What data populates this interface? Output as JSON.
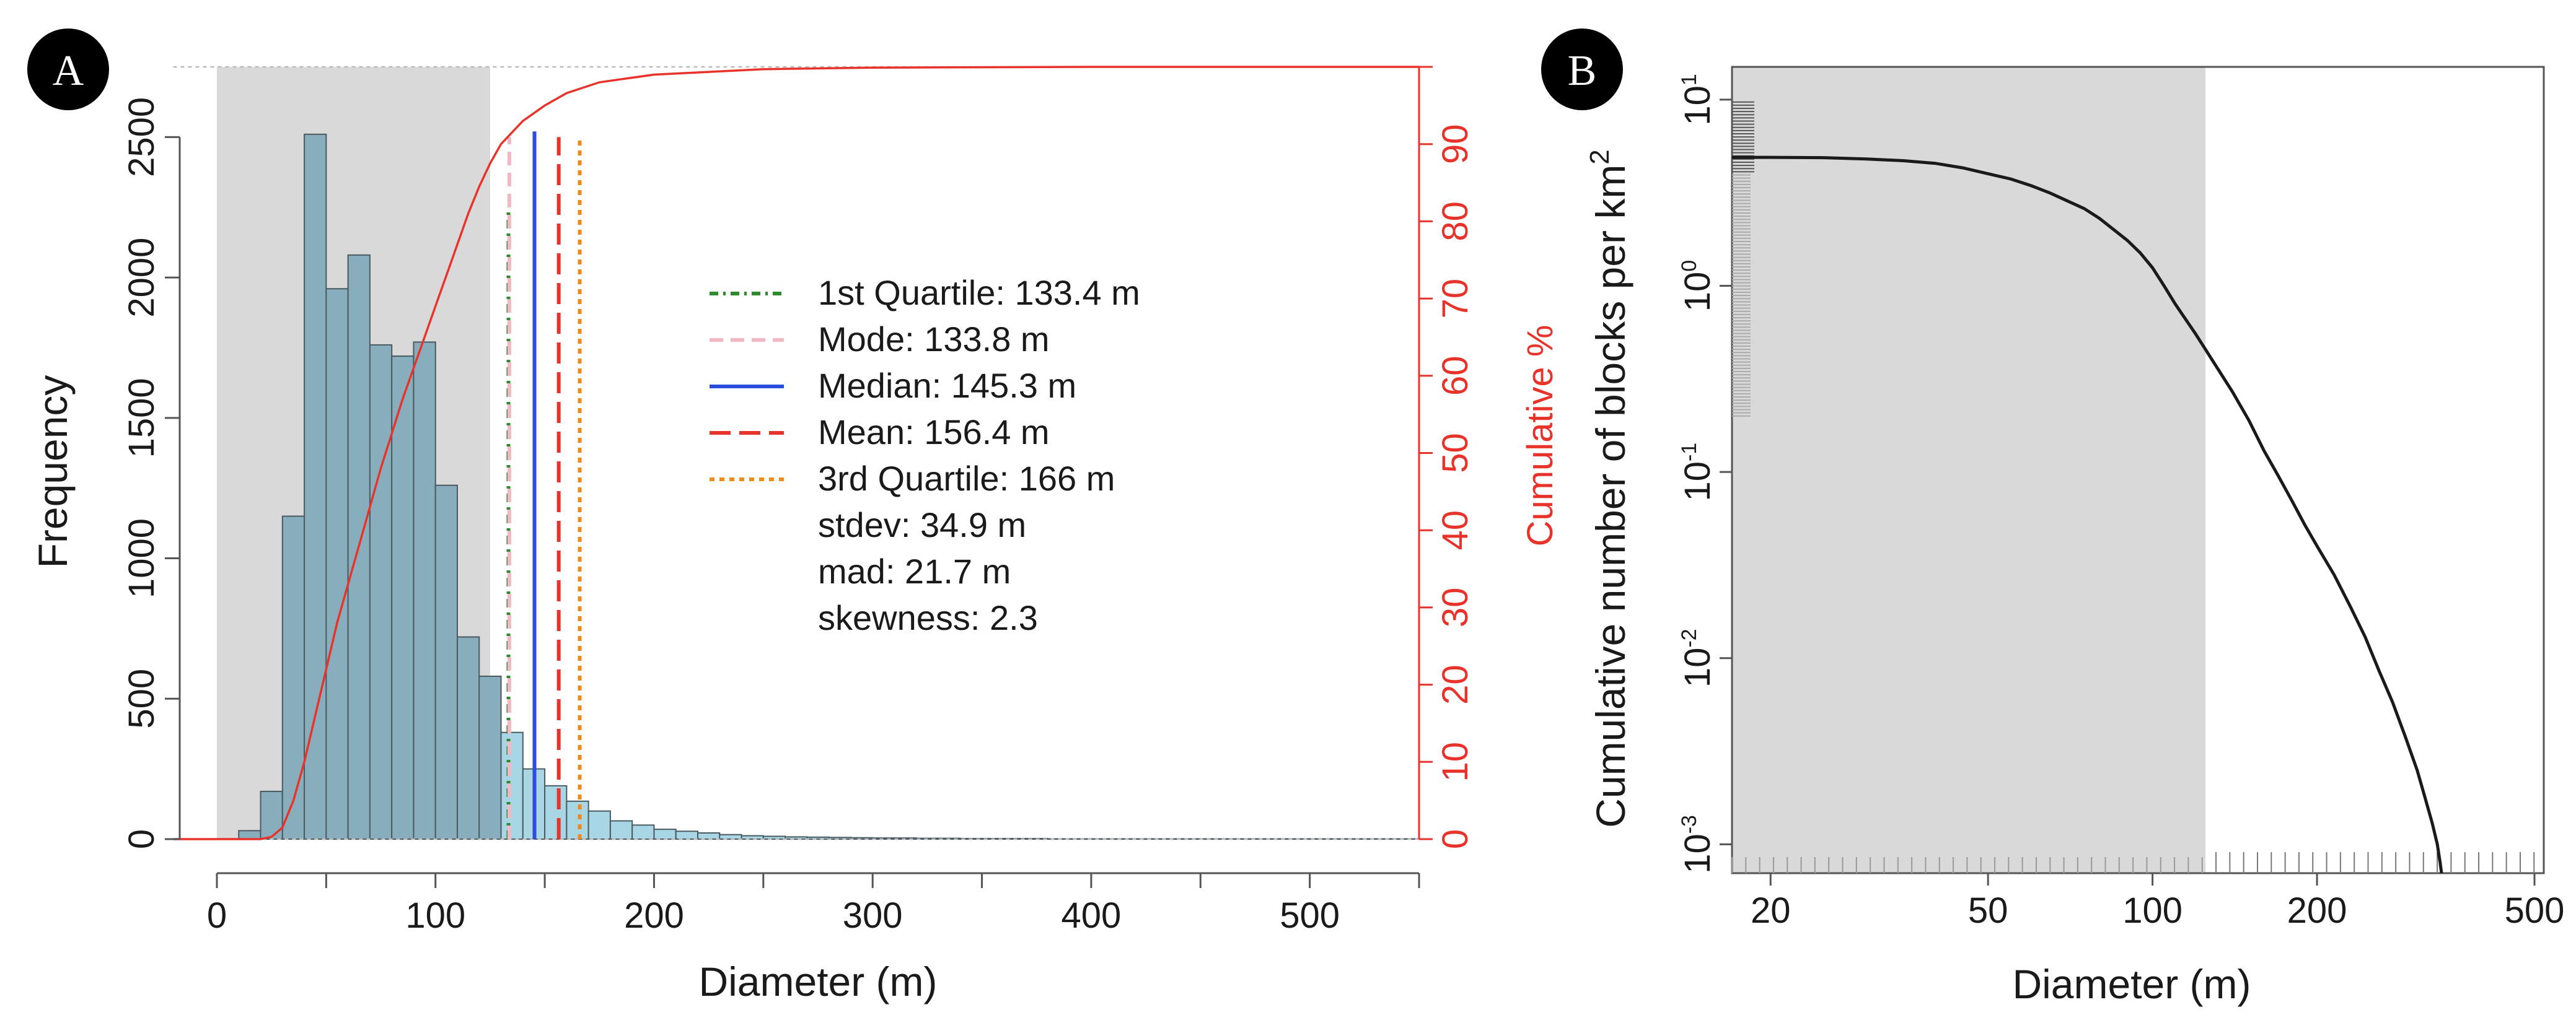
{
  "panels": {
    "A": {
      "badge": "A"
    },
    "B": {
      "badge": "B"
    }
  },
  "chart_data": [
    {
      "type": "bar",
      "panel": "A",
      "xlabel": "Diameter (m)",
      "ylabel": "Frequency",
      "y2label": "Cumulative %",
      "xlim": [
        0,
        550
      ],
      "ylim": [
        0,
        2750
      ],
      "y2lim": [
        0,
        100
      ],
      "x_ticks": [
        0,
        100,
        200,
        300,
        400,
        500
      ],
      "y_ticks": [
        0,
        500,
        1000,
        1500,
        2000,
        2500
      ],
      "y2_ticks": [
        0,
        10,
        20,
        30,
        40,
        50,
        60,
        70,
        80,
        90
      ],
      "shaded_region": [
        0,
        125
      ],
      "bin_width": 10,
      "bins": [
        [
          0,
          0
        ],
        [
          10,
          30
        ],
        [
          20,
          170
        ],
        [
          30,
          1150
        ],
        [
          40,
          2510
        ],
        [
          50,
          1960
        ],
        [
          60,
          2080
        ],
        [
          70,
          1760
        ],
        [
          80,
          1720
        ],
        [
          90,
          1770
        ],
        [
          100,
          1260
        ],
        [
          110,
          720
        ],
        [
          120,
          580
        ],
        [
          130,
          380
        ],
        [
          140,
          250
        ],
        [
          150,
          190
        ],
        [
          160,
          135
        ],
        [
          170,
          100
        ],
        [
          180,
          65
        ],
        [
          190,
          50
        ],
        [
          200,
          35
        ],
        [
          210,
          28
        ],
        [
          220,
          22
        ],
        [
          230,
          16
        ],
        [
          240,
          12
        ],
        [
          250,
          10
        ],
        [
          260,
          8
        ],
        [
          270,
          7
        ],
        [
          280,
          6
        ],
        [
          290,
          5
        ],
        [
          300,
          4
        ],
        [
          310,
          4
        ],
        [
          320,
          3
        ],
        [
          330,
          3
        ],
        [
          340,
          2
        ],
        [
          350,
          2
        ],
        [
          360,
          2
        ],
        [
          370,
          2
        ],
        [
          380,
          1
        ],
        [
          390,
          1
        ],
        [
          400,
          1
        ],
        [
          410,
          1
        ],
        [
          420,
          1
        ],
        [
          430,
          1
        ],
        [
          440,
          1
        ],
        [
          450,
          1
        ],
        [
          460,
          1
        ],
        [
          470,
          1
        ],
        [
          480,
          1
        ],
        [
          490,
          1
        ],
        [
          500,
          1
        ],
        [
          510,
          1
        ],
        [
          520,
          1
        ],
        [
          530,
          1
        ],
        [
          540,
          1
        ]
      ],
      "bar_color_shaded": "#88aebd",
      "bar_color_unshaded": "#a8d6e4",
      "shade_color": "#d9d9d9",
      "cumulative_curve": {
        "color": "#e8332b",
        "points": [
          [
            -20,
            0
          ],
          [
            20,
            0
          ],
          [
            25,
            0.3
          ],
          [
            30,
            1.5
          ],
          [
            35,
            5
          ],
          [
            40,
            10
          ],
          [
            45,
            16
          ],
          [
            50,
            22
          ],
          [
            55,
            28
          ],
          [
            60,
            33
          ],
          [
            65,
            38
          ],
          [
            70,
            43
          ],
          [
            75,
            48
          ],
          [
            80,
            52.5
          ],
          [
            85,
            57
          ],
          [
            90,
            61
          ],
          [
            95,
            65
          ],
          [
            100,
            69
          ],
          [
            105,
            73
          ],
          [
            110,
            77
          ],
          [
            115,
            81
          ],
          [
            120,
            84.5
          ],
          [
            125,
            87.5
          ],
          [
            130,
            90
          ],
          [
            140,
            93
          ],
          [
            150,
            95
          ],
          [
            160,
            96.6
          ],
          [
            175,
            98
          ],
          [
            200,
            99
          ],
          [
            250,
            99.7
          ],
          [
            300,
            99.9
          ],
          [
            400,
            100
          ],
          [
            550,
            100
          ]
        ]
      },
      "vlines": [
        {
          "name": "1st Quartile",
          "x": 133.4,
          "color": "#2e8b2e",
          "dash": "14 8 4 8",
          "top": 2250
        },
        {
          "name": "Mode",
          "x": 133.8,
          "color": "#f4b8c4",
          "dash": "22 12",
          "top": 2500
        },
        {
          "name": "Median",
          "x": 145.3,
          "color": "#2b4ee0",
          "dash": "",
          "top": 2520
        },
        {
          "name": "Mean",
          "x": 156.4,
          "color": "#e8332b",
          "dash": "34 14",
          "top": 2500
        },
        {
          "name": "3rd Quartile",
          "x": 166,
          "color": "#f08a1a",
          "dash": "8 8",
          "top": 2500
        }
      ],
      "legend": [
        {
          "label": "1st Quartile: 133.4 m",
          "color": "#2e8b2e",
          "dash": "14 8 4 8"
        },
        {
          "label": "Mode: 133.8 m",
          "color": "#f4b8c4",
          "dash": "22 12"
        },
        {
          "label": "Median: 145.3 m",
          "color": "#2b4ee0",
          "dash": ""
        },
        {
          "label": "Mean: 156.4 m",
          "color": "#e8332b",
          "dash": "34 14"
        },
        {
          "label": "3rd Quartile: 166 m",
          "color": "#f08a1a",
          "dash": "8 8"
        },
        {
          "label": "stdev: 34.9 m"
        },
        {
          "label": "mad: 21.7 m"
        },
        {
          "label": "skewness: 2.3"
        }
      ]
    },
    {
      "type": "line",
      "panel": "B",
      "scale": "log-log",
      "xlabel": "Diameter (m)",
      "ylabel": "Cumulative number of blocks per km",
      "ylabel_superscript": "2",
      "xlim": [
        17,
        520
      ],
      "ylim": [
        0.0007,
        15
      ],
      "x_ticks": [
        20,
        50,
        100,
        200,
        500
      ],
      "y_ticks": [
        {
          "value": 10,
          "base": "10",
          "exp": "1"
        },
        {
          "value": 1,
          "base": "10",
          "exp": "0"
        },
        {
          "value": 0.1,
          "base": "10",
          "exp": "-1"
        },
        {
          "value": 0.01,
          "base": "10",
          "exp": "-2"
        },
        {
          "value": 0.001,
          "base": "10",
          "exp": "-3"
        }
      ],
      "shaded_region": [
        17,
        125
      ],
      "line_color": "#1a1a1a",
      "points": [
        [
          17,
          4.9
        ],
        [
          20,
          4.9
        ],
        [
          25,
          4.88
        ],
        [
          30,
          4.8
        ],
        [
          35,
          4.7
        ],
        [
          40,
          4.55
        ],
        [
          45,
          4.3
        ],
        [
          50,
          4.0
        ],
        [
          55,
          3.75
        ],
        [
          60,
          3.45
        ],
        [
          65,
          3.15
        ],
        [
          70,
          2.85
        ],
        [
          75,
          2.6
        ],
        [
          80,
          2.3
        ],
        [
          85,
          2.0
        ],
        [
          90,
          1.75
        ],
        [
          95,
          1.5
        ],
        [
          100,
          1.25
        ],
        [
          105,
          1.0
        ],
        [
          110,
          0.8
        ],
        [
          120,
          0.55
        ],
        [
          130,
          0.38
        ],
        [
          140,
          0.27
        ],
        [
          150,
          0.19
        ],
        [
          160,
          0.13
        ],
        [
          170,
          0.095
        ],
        [
          180,
          0.07
        ],
        [
          190,
          0.052
        ],
        [
          200,
          0.04
        ],
        [
          215,
          0.028
        ],
        [
          230,
          0.019
        ],
        [
          245,
          0.013
        ],
        [
          260,
          0.0085
        ],
        [
          275,
          0.0058
        ],
        [
          290,
          0.0038
        ],
        [
          305,
          0.0025
        ],
        [
          315,
          0.0018
        ],
        [
          325,
          0.0013
        ],
        [
          332,
          0.001
        ],
        [
          336,
          0.0008
        ],
        [
          338,
          0.0007
        ]
      ]
    }
  ]
}
